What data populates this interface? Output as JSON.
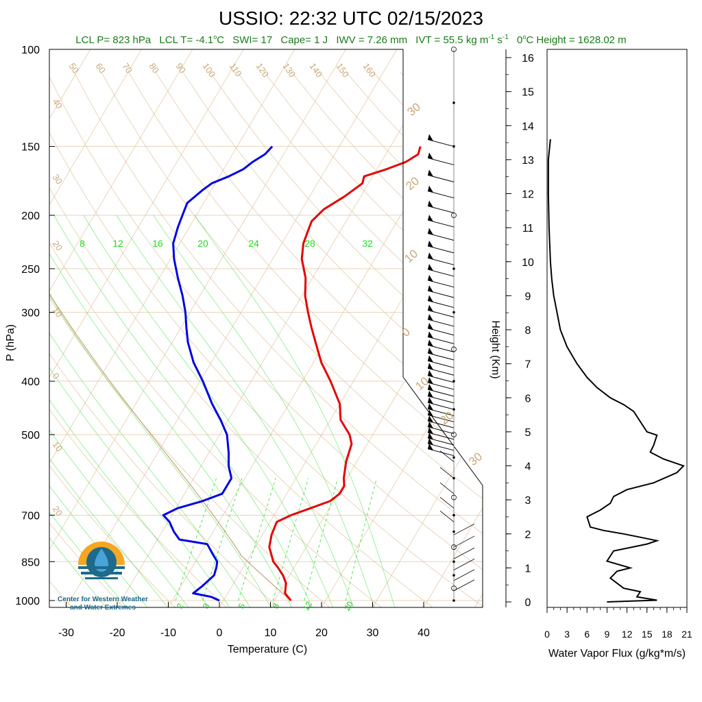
{
  "header": {
    "title": "USSIO: 22:32 UTC 02/15/2023",
    "stats": {
      "lcl_p": "LCL P= 823 hPa",
      "lcl_t_prefix": "LCL T= -4.1",
      "lcl_t_unit": "C",
      "swi": "SWI= 17",
      "cape": "Cape= 1 J",
      "iwv": "IWV = 7.26 mm",
      "ivt_prefix": "IVT = 55.5 kg m",
      "ivt_exp1": "-1",
      "ivt_mid": " s",
      "ivt_exp2": "-1",
      "zero_height_prefix": "0",
      "zero_height_rest": "C Height = 1628.02 m"
    }
  },
  "logo": {
    "line1": "Center for Western Weather",
    "line2": "and Water Extremes",
    "colors": {
      "sun": "#f5a623",
      "water": "#1e6a8a",
      "drop": "#4aa3d8"
    }
  },
  "colors": {
    "temperature": "#e60000",
    "dewpoint": "#0000e6",
    "isotherm": "#d9b48a",
    "mixing_ratio": "#22dd22",
    "parcel": "#c8a07a",
    "flux": "#000000"
  },
  "chart_data": [
    {
      "type": "skew-t",
      "ylabel": "P (hPa)",
      "xlabel": "Temperature (C)",
      "pressure_ticks": [
        100,
        150,
        200,
        250,
        300,
        400,
        500,
        700,
        850,
        1000
      ],
      "pressure_tick_labels": [
        "100",
        "150",
        "200",
        "250",
        "300",
        "400",
        "500",
        "700",
        "850",
        "1000"
      ],
      "temperature_ticks": [
        -30,
        -20,
        -10,
        0,
        10,
        20,
        30,
        40
      ],
      "temperature_tick_labels": [
        "-30",
        "-20",
        "-10",
        "0",
        "10",
        "20",
        "30",
        "40"
      ],
      "skewed_isotherm_labels": [
        "50",
        "60",
        "70",
        "80",
        "90",
        "100",
        "110",
        "120",
        "130",
        "140",
        "150",
        "160"
      ],
      "left_adiabat_labels": [
        "40",
        "30",
        "20",
        "10",
        "0",
        "10",
        "20"
      ],
      "right_adiabat_labels": [
        "30",
        "20",
        "10",
        "0",
        "10",
        "20",
        "30"
      ],
      "mixing_ratio_labels_upper": [
        "8",
        "12",
        "16",
        "20",
        "24",
        "28",
        "32"
      ],
      "mixing_ratio_labels_lower": [
        "2",
        "3",
        "5",
        "8",
        "12",
        "20"
      ],
      "temperature_profile": [
        {
          "p": 1000,
          "t": 14.0
        },
        {
          "p": 970,
          "t": 12.0
        },
        {
          "p": 930,
          "t": 11.0
        },
        {
          "p": 900,
          "t": 9.5
        },
        {
          "p": 870,
          "t": 7.5
        },
        {
          "p": 850,
          "t": 6.0
        },
        {
          "p": 800,
          "t": 3.5
        },
        {
          "p": 760,
          "t": 2.5
        },
        {
          "p": 720,
          "t": 2.0
        },
        {
          "p": 700,
          "t": 4.0
        },
        {
          "p": 680,
          "t": 7.0
        },
        {
          "p": 660,
          "t": 10.0
        },
        {
          "p": 640,
          "t": 11.0
        },
        {
          "p": 620,
          "t": 11.0
        },
        {
          "p": 600,
          "t": 10.0
        },
        {
          "p": 560,
          "t": 8.5
        },
        {
          "p": 520,
          "t": 7.5
        },
        {
          "p": 500,
          "t": 6.0
        },
        {
          "p": 470,
          "t": 2.5
        },
        {
          "p": 440,
          "t": 0.5
        },
        {
          "p": 400,
          "t": -4.0
        },
        {
          "p": 370,
          "t": -8.0
        },
        {
          "p": 340,
          "t": -11.5
        },
        {
          "p": 320,
          "t": -14.0
        },
        {
          "p": 300,
          "t": -16.5
        },
        {
          "p": 280,
          "t": -19.0
        },
        {
          "p": 260,
          "t": -21.0
        },
        {
          "p": 240,
          "t": -24.0
        },
        {
          "p": 225,
          "t": -25.5
        },
        {
          "p": 215,
          "t": -26.0
        },
        {
          "p": 205,
          "t": -26.5
        },
        {
          "p": 195,
          "t": -25.5
        },
        {
          "p": 185,
          "t": -23.0
        },
        {
          "p": 175,
          "t": -21.0
        },
        {
          "p": 170,
          "t": -21.5
        },
        {
          "p": 165,
          "t": -18.0
        },
        {
          "p": 160,
          "t": -15.0
        },
        {
          "p": 155,
          "t": -13.5
        },
        {
          "p": 150,
          "t": -14.0
        }
      ],
      "dewpoint_profile": [
        {
          "p": 1000,
          "t": 0.0
        },
        {
          "p": 985,
          "t": -2.0
        },
        {
          "p": 970,
          "t": -6.0
        },
        {
          "p": 940,
          "t": -5.0
        },
        {
          "p": 900,
          "t": -4.0
        },
        {
          "p": 870,
          "t": -4.5
        },
        {
          "p": 850,
          "t": -5.0
        },
        {
          "p": 820,
          "t": -7.0
        },
        {
          "p": 790,
          "t": -9.0
        },
        {
          "p": 775,
          "t": -15.0
        },
        {
          "p": 750,
          "t": -17.0
        },
        {
          "p": 720,
          "t": -19.0
        },
        {
          "p": 700,
          "t": -21.0
        },
        {
          "p": 680,
          "t": -19.0
        },
        {
          "p": 660,
          "t": -15.0
        },
        {
          "p": 640,
          "t": -12.0
        },
        {
          "p": 600,
          "t": -12.0
        },
        {
          "p": 570,
          "t": -14.0
        },
        {
          "p": 540,
          "t": -15.5
        },
        {
          "p": 500,
          "t": -18.0
        },
        {
          "p": 470,
          "t": -21.0
        },
        {
          "p": 440,
          "t": -24.5
        },
        {
          "p": 400,
          "t": -29.0
        },
        {
          "p": 370,
          "t": -33.0
        },
        {
          "p": 340,
          "t": -36.5
        },
        {
          "p": 320,
          "t": -38.5
        },
        {
          "p": 300,
          "t": -40.5
        },
        {
          "p": 280,
          "t": -43.0
        },
        {
          "p": 260,
          "t": -46.0
        },
        {
          "p": 240,
          "t": -49.0
        },
        {
          "p": 225,
          "t": -51.0
        },
        {
          "p": 210,
          "t": -52.0
        },
        {
          "p": 200,
          "t": -52.5
        },
        {
          "p": 190,
          "t": -53.0
        },
        {
          "p": 180,
          "t": -51.5
        },
        {
          "p": 175,
          "t": -50.5
        },
        {
          "p": 170,
          "t": -48.0
        },
        {
          "p": 165,
          "t": -46.0
        },
        {
          "p": 160,
          "t": -45.0
        },
        {
          "p": 155,
          "t": -43.5
        },
        {
          "p": 150,
          "t": -43.0
        }
      ]
    },
    {
      "type": "line",
      "xlabel": "Water Vapor Flux (g/kg*m/s)",
      "ylabel": "Height (Km)",
      "xlim": [
        0,
        21
      ],
      "ylim": [
        0,
        16
      ],
      "x_ticks": [
        0,
        3,
        6,
        9,
        12,
        15,
        18,
        21
      ],
      "x_tick_labels": [
        "0",
        "3",
        "6",
        "9",
        "12",
        "15",
        "18",
        "21"
      ],
      "y_ticks": [
        0,
        1,
        2,
        3,
        4,
        5,
        6,
        7,
        8,
        9,
        10,
        11,
        12,
        13,
        14,
        15,
        16
      ],
      "y_tick_labels": [
        "0",
        "1",
        "2",
        "3",
        "4",
        "5",
        "6",
        "7",
        "8",
        "9",
        "10",
        "11",
        "12",
        "13",
        "14",
        "15",
        "16"
      ],
      "series": [
        {
          "x": [
            9.0,
            16.5,
            13.5,
            14.0,
            11.5,
            9.5,
            10.5,
            12.5,
            9.0,
            10.0,
            15.0,
            16.5,
            14.0,
            11.5,
            8.5,
            6.5,
            6.0,
            8.0,
            9.5,
            10.0,
            12.0,
            16.0,
            19.5,
            20.5,
            17.5,
            15.5,
            16.0,
            16.5,
            15.0,
            14.0,
            13.0,
            11.5,
            9.5,
            7.5,
            6.0,
            4.5,
            3.0,
            2.0,
            1.5,
            1.0,
            0.7,
            0.5,
            0.3,
            0.2,
            0.2,
            0.5
          ],
          "y": [
            0.0,
            0.05,
            0.15,
            0.3,
            0.4,
            0.7,
            0.9,
            1.0,
            1.2,
            1.5,
            1.7,
            1.8,
            1.9,
            2.0,
            2.1,
            2.2,
            2.5,
            2.7,
            2.9,
            3.1,
            3.3,
            3.5,
            3.8,
            4.0,
            4.2,
            4.4,
            4.6,
            4.9,
            5.0,
            5.3,
            5.6,
            5.8,
            6.0,
            6.3,
            6.6,
            7.0,
            7.5,
            8.0,
            8.5,
            9.0,
            9.5,
            10.0,
            11.0,
            12.0,
            13.0,
            13.6
          ]
        }
      ]
    }
  ]
}
